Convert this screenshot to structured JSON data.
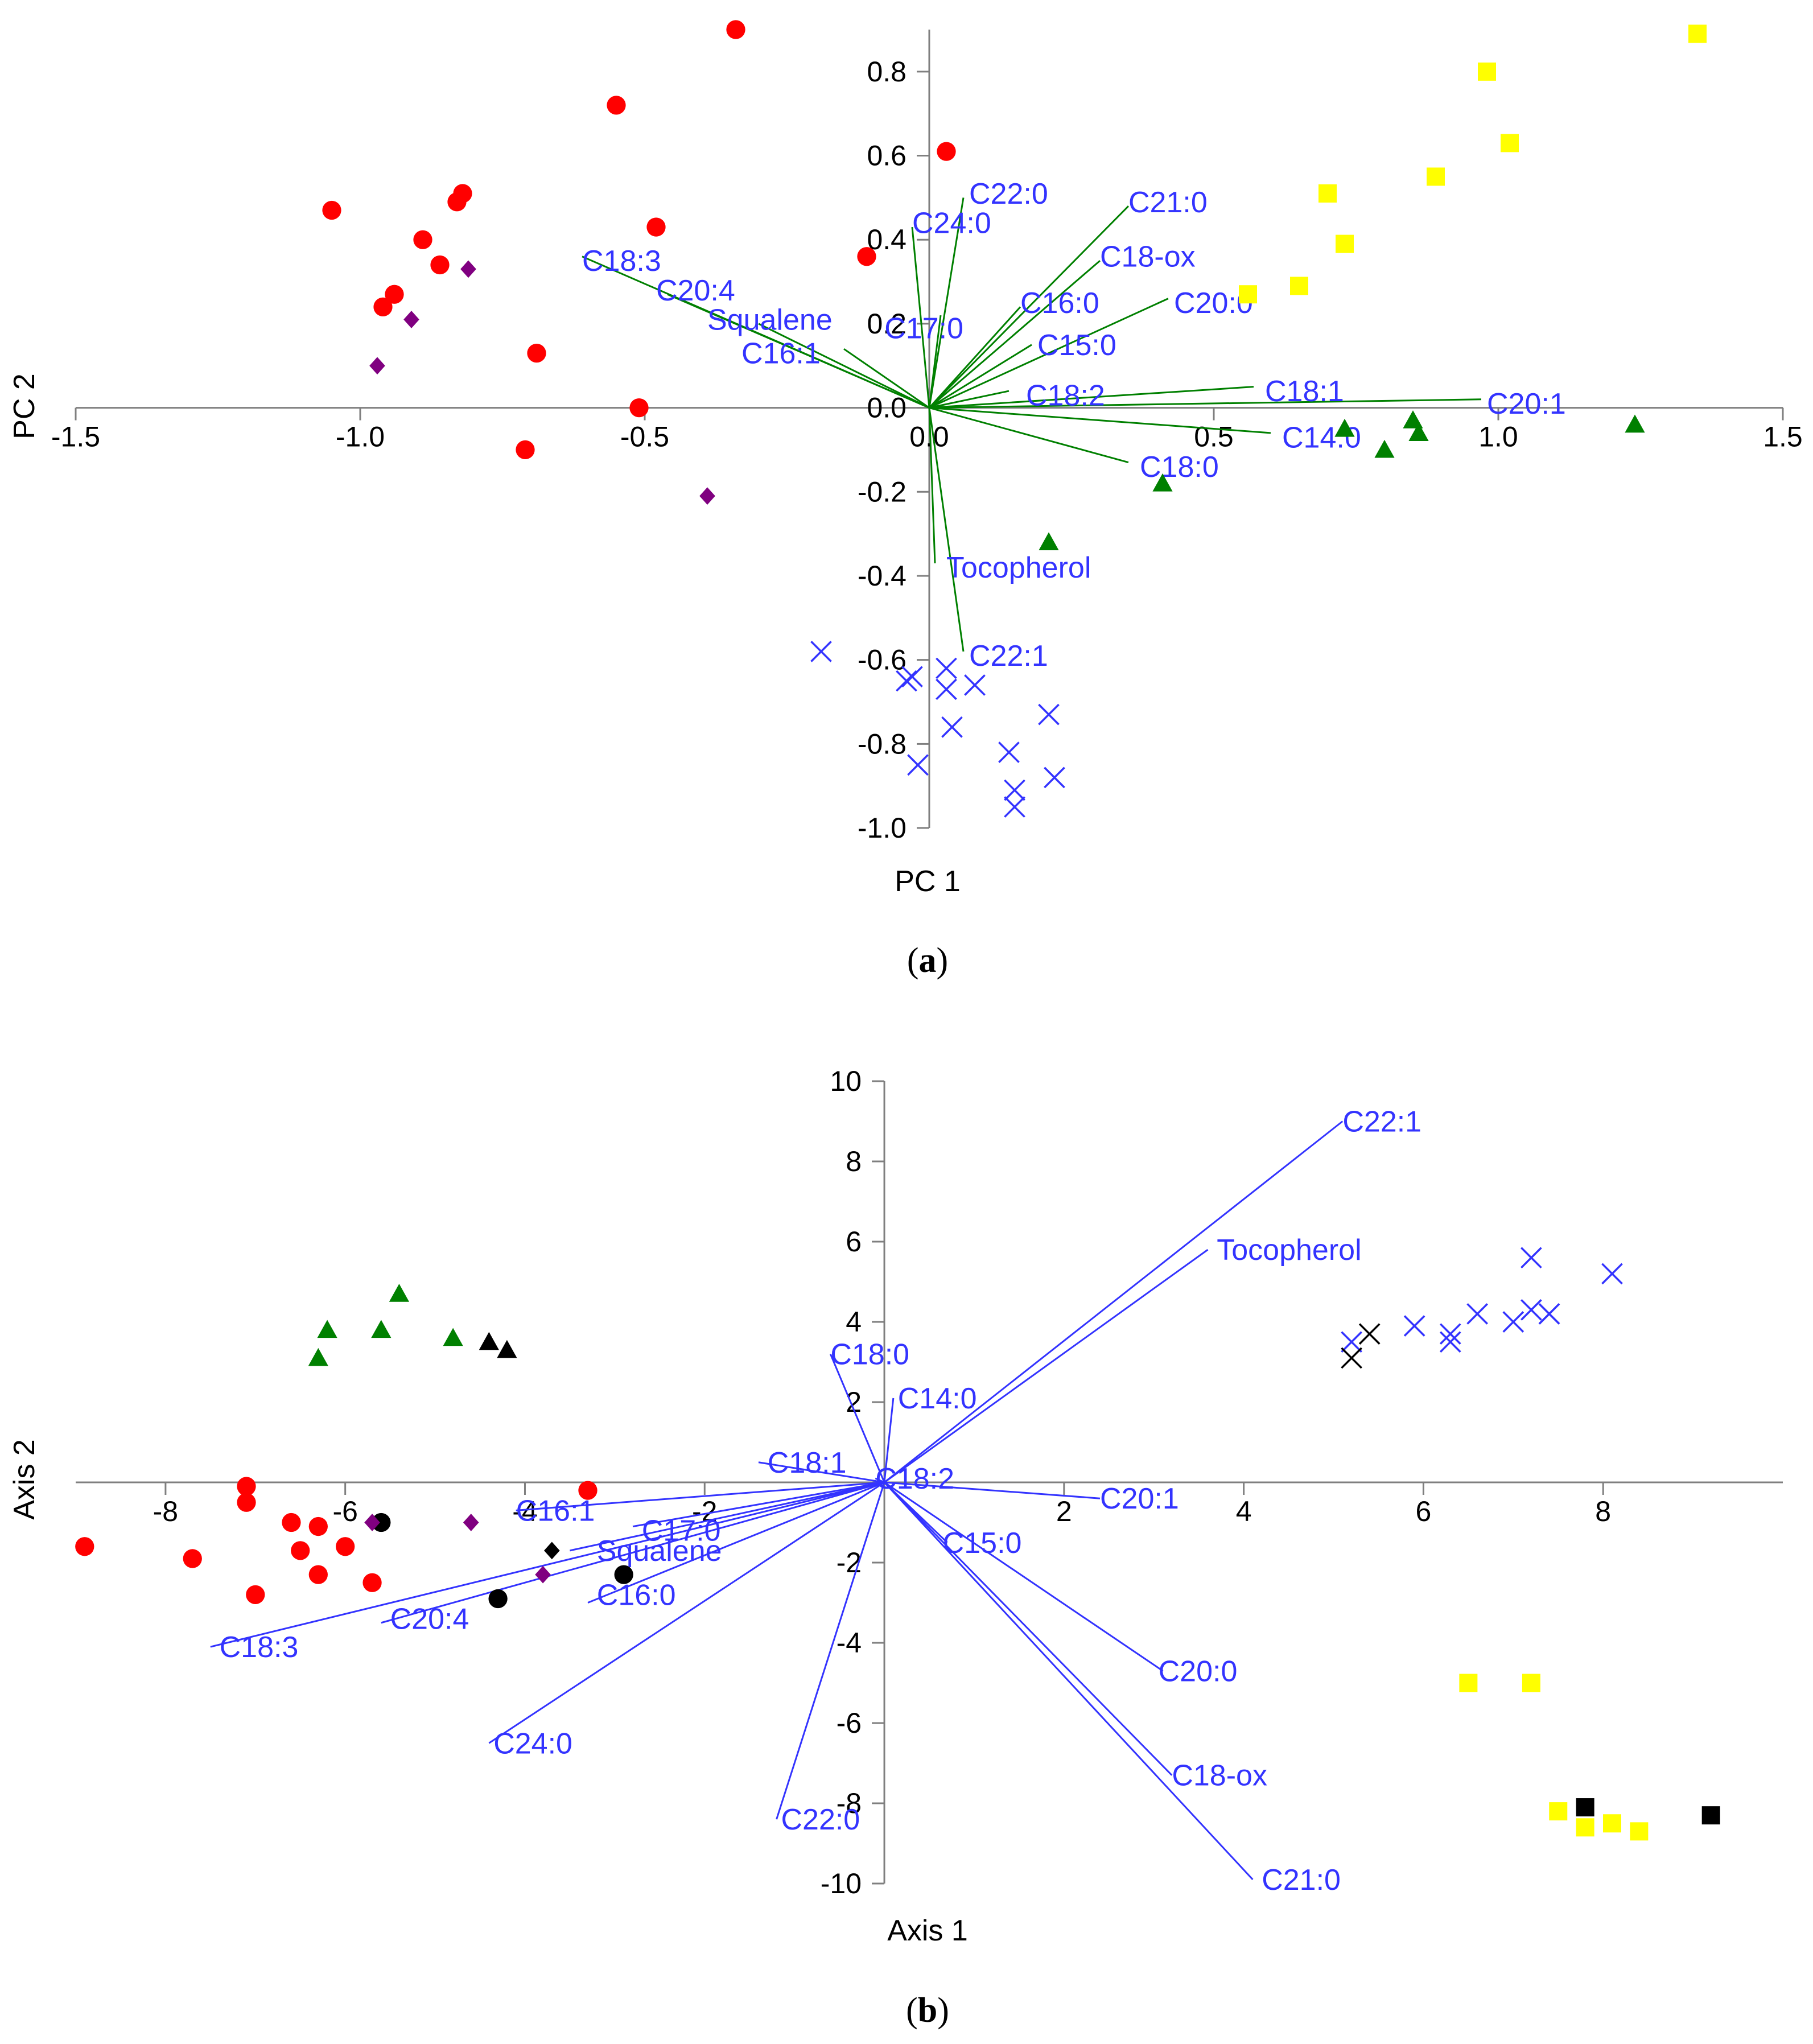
{
  "colors": {
    "red": "#ff0000",
    "yellow": "#ffff00",
    "green": "#008000",
    "purple": "#800080",
    "blue": "#3333ff",
    "black": "#000000",
    "loadingA": "#008000",
    "loadingB": "#3333ff"
  },
  "chart_data": [
    {
      "type": "scatter",
      "panel": "a",
      "panel_label": {
        "open": "(",
        "letter": "a",
        "close": ")"
      },
      "xlabel": "PC 1",
      "ylabel": "PC 2",
      "xlim": [
        -1.5,
        1.5
      ],
      "ylim": [
        -1.0,
        0.9
      ],
      "xticks": [
        -1.5,
        -1.0,
        -0.5,
        0.0,
        0.5,
        1.0,
        1.5
      ],
      "xtick_labels": [
        "-1.5",
        "-1.0",
        "-0.5",
        "0.0",
        "0.5",
        "1.0",
        "1.5"
      ],
      "yticks": [
        -1.0,
        -0.8,
        -0.6,
        -0.4,
        -0.2,
        0.0,
        0.2,
        0.4,
        0.6,
        0.8
      ],
      "ytick_labels": [
        "-1.0",
        "-0.8",
        "-0.6",
        "-0.4",
        "-0.2",
        "0.0",
        "0.2",
        "0.4",
        "0.6",
        "0.8"
      ],
      "series": [
        {
          "name": "red-circles",
          "marker": "circle",
          "color": "red",
          "points": [
            [
              -0.34,
              0.9
            ],
            [
              -0.55,
              0.72
            ],
            [
              -1.05,
              0.47
            ],
            [
              -0.82,
              0.51
            ],
            [
              -0.83,
              0.49
            ],
            [
              -0.89,
              0.4
            ],
            [
              -0.86,
              0.34
            ],
            [
              -0.94,
              0.27
            ],
            [
              -0.96,
              0.24
            ],
            [
              -0.69,
              0.13
            ],
            [
              -0.48,
              0.43
            ],
            [
              -0.71,
              -0.1
            ],
            [
              -0.51,
              0.0
            ],
            [
              0.03,
              0.61
            ],
            [
              -0.11,
              0.36
            ]
          ]
        },
        {
          "name": "purple-diamonds",
          "marker": "diamond",
          "color": "purple",
          "points": [
            [
              -0.81,
              0.33
            ],
            [
              -0.91,
              0.21
            ],
            [
              -0.97,
              0.1
            ],
            [
              -0.39,
              -0.21
            ]
          ]
        },
        {
          "name": "yellow-squares",
          "marker": "square",
          "color": "yellow",
          "points": [
            [
              1.35,
              0.89
            ],
            [
              0.98,
              0.8
            ],
            [
              1.02,
              0.63
            ],
            [
              0.89,
              0.55
            ],
            [
              0.7,
              0.51
            ],
            [
              0.73,
              0.39
            ],
            [
              0.65,
              0.29
            ],
            [
              0.56,
              0.27
            ]
          ]
        },
        {
          "name": "green-triangles",
          "marker": "triangle",
          "color": "green",
          "points": [
            [
              1.24,
              -0.04
            ],
            [
              0.85,
              -0.03
            ],
            [
              0.86,
              -0.06
            ],
            [
              0.73,
              -0.05
            ],
            [
              0.8,
              -0.1
            ],
            [
              0.41,
              -0.18
            ],
            [
              0.21,
              -0.32
            ]
          ]
        },
        {
          "name": "blue-crosses",
          "marker": "cross",
          "color": "blue",
          "points": [
            [
              -0.19,
              -0.58
            ],
            [
              -0.03,
              -0.64
            ],
            [
              -0.04,
              -0.65
            ],
            [
              0.03,
              -0.62
            ],
            [
              0.03,
              -0.67
            ],
            [
              0.08,
              -0.66
            ],
            [
              0.04,
              -0.76
            ],
            [
              -0.02,
              -0.85
            ],
            [
              0.14,
              -0.82
            ],
            [
              0.21,
              -0.73
            ],
            [
              0.15,
              -0.91
            ],
            [
              0.15,
              -0.95
            ],
            [
              0.22,
              -0.88
            ]
          ]
        }
      ],
      "vector_color": "loadingA",
      "label_color": "blue",
      "vectors": [
        {
          "name": "C22:0",
          "x": 0.06,
          "y": 0.5,
          "label_anchor": "start",
          "lx": 0.07,
          "ly": 0.51
        },
        {
          "name": "C24:0",
          "x": -0.03,
          "y": 0.43,
          "label_anchor": "start",
          "lx": -0.03,
          "ly": 0.44
        },
        {
          "name": "C21:0",
          "x": 0.35,
          "y": 0.48,
          "label_anchor": "start",
          "lx": 0.35,
          "ly": 0.49
        },
        {
          "name": "C18-ox",
          "x": 0.3,
          "y": 0.35,
          "label_anchor": "start",
          "lx": 0.3,
          "ly": 0.36
        },
        {
          "name": "C16:0",
          "x": 0.16,
          "y": 0.24,
          "label_anchor": "start",
          "lx": 0.16,
          "ly": 0.25
        },
        {
          "name": "C20:0",
          "x": 0.42,
          "y": 0.26,
          "label_anchor": "start",
          "lx": 0.43,
          "ly": 0.25
        },
        {
          "name": "C15:0",
          "x": 0.18,
          "y": 0.15,
          "label_anchor": "start",
          "lx": 0.19,
          "ly": 0.15
        },
        {
          "name": "C17:0",
          "x": 0.02,
          "y": 0.22,
          "label_anchor": "end",
          "lx": 0.06,
          "ly": 0.19
        },
        {
          "name": "C18:3",
          "x": -0.61,
          "y": 0.36,
          "label_anchor": "start",
          "lx": -0.61,
          "ly": 0.35
        },
        {
          "name": "C20:4",
          "x": -0.46,
          "y": 0.27,
          "label_anchor": "start",
          "lx": -0.48,
          "ly": 0.28
        },
        {
          "name": "Squalene",
          "x": -0.3,
          "y": 0.2,
          "label_anchor": "start",
          "lx": -0.39,
          "ly": 0.21
        },
        {
          "name": "C16:1",
          "x": -0.15,
          "y": 0.14,
          "label_anchor": "start",
          "lx": -0.33,
          "ly": 0.13
        },
        {
          "name": "C18:2",
          "x": 0.14,
          "y": 0.04,
          "label_anchor": "start",
          "lx": 0.17,
          "ly": 0.03
        },
        {
          "name": "C18:1",
          "x": 0.57,
          "y": 0.05,
          "label_anchor": "start",
          "lx": 0.59,
          "ly": 0.04
        },
        {
          "name": "C20:1",
          "x": 0.97,
          "y": 0.02,
          "label_anchor": "start",
          "lx": 0.98,
          "ly": 0.01
        },
        {
          "name": "C14:0",
          "x": 0.6,
          "y": -0.06,
          "label_anchor": "start",
          "lx": 0.62,
          "ly": -0.07
        },
        {
          "name": "C18:0",
          "x": 0.35,
          "y": -0.13,
          "label_anchor": "start",
          "lx": 0.37,
          "ly": -0.14
        },
        {
          "name": "Tocopherol",
          "x": 0.01,
          "y": -0.37,
          "label_anchor": "start",
          "lx": 0.03,
          "ly": -0.38
        },
        {
          "name": "C22:1",
          "x": 0.06,
          "y": -0.58,
          "label_anchor": "start",
          "lx": 0.07,
          "ly": -0.59
        }
      ]
    },
    {
      "type": "scatter",
      "panel": "b",
      "panel_label": {
        "open": "(",
        "letter": "b",
        "close": ")"
      },
      "xlabel": "Axis 1",
      "ylabel": "Axis 2",
      "xlim": [
        -9,
        10
      ],
      "ylim": [
        -10,
        10
      ],
      "xticks": [
        -8,
        -6,
        -4,
        -2,
        2,
        4,
        6,
        8
      ],
      "xtick_labels": [
        "-8",
        "-6",
        "-4",
        "-2",
        "2",
        "4",
        "6",
        "8"
      ],
      "yticks": [
        -10,
        -8,
        -6,
        -4,
        -2,
        2,
        4,
        6,
        8,
        10
      ],
      "ytick_labels": [
        "-10",
        "-8",
        "-6",
        "-4",
        "-2",
        "2",
        "4",
        "6",
        "8",
        "10"
      ],
      "series": [
        {
          "name": "red-circles",
          "marker": "circle",
          "color": "red",
          "points": [
            [
              -8.9,
              -1.6
            ],
            [
              -7.7,
              -1.9
            ],
            [
              -7.1,
              -0.1
            ],
            [
              -7.1,
              -0.5
            ],
            [
              -7.0,
              -2.8
            ],
            [
              -6.6,
              -1.0
            ],
            [
              -6.5,
              -1.7
            ],
            [
              -6.3,
              -1.1
            ],
            [
              -6.3,
              -2.3
            ],
            [
              -6.0,
              -1.6
            ],
            [
              -5.7,
              -2.5
            ],
            [
              -3.3,
              -0.2
            ]
          ]
        },
        {
          "name": "black-circles",
          "marker": "circle",
          "color": "black",
          "points": [
            [
              -5.6,
              -1.0
            ],
            [
              -4.3,
              -2.9
            ],
            [
              -2.9,
              -2.3
            ]
          ]
        },
        {
          "name": "purple-diamonds",
          "marker": "diamond",
          "color": "purple",
          "points": [
            [
              -5.7,
              -1.0
            ],
            [
              -4.6,
              -1.0
            ],
            [
              -3.8,
              -2.3
            ]
          ]
        },
        {
          "name": "black-diamonds",
          "marker": "diamond",
          "color": "black",
          "points": [
            [
              -3.7,
              -1.7
            ]
          ]
        },
        {
          "name": "green-triangles",
          "marker": "triangle",
          "color": "green",
          "points": [
            [
              -5.4,
              4.7
            ],
            [
              -6.2,
              3.8
            ],
            [
              -5.6,
              3.8
            ],
            [
              -6.3,
              3.1
            ],
            [
              -4.8,
              3.6
            ]
          ]
        },
        {
          "name": "black-triangles",
          "marker": "triangle",
          "color": "black",
          "points": [
            [
              -4.4,
              3.5
            ],
            [
              -4.2,
              3.3
            ]
          ]
        },
        {
          "name": "blue-crosses",
          "marker": "cross",
          "color": "blue",
          "points": [
            [
              8.1,
              5.2
            ],
            [
              7.2,
              5.6
            ],
            [
              7.2,
              4.3
            ],
            [
              7.4,
              4.2
            ],
            [
              7.4,
              4.2
            ],
            [
              6.6,
              4.2
            ],
            [
              7.0,
              4.0
            ],
            [
              5.9,
              3.9
            ],
            [
              6.3,
              3.7
            ],
            [
              6.3,
              3.5
            ],
            [
              5.2,
              3.5
            ]
          ]
        },
        {
          "name": "black-crosses",
          "marker": "cross",
          "color": "black",
          "points": [
            [
              5.4,
              3.7
            ],
            [
              5.2,
              3.1
            ]
          ]
        },
        {
          "name": "yellow-squares",
          "marker": "square",
          "color": "yellow",
          "points": [
            [
              6.5,
              -5.0
            ],
            [
              7.2,
              -5.0
            ],
            [
              7.5,
              -8.2
            ],
            [
              7.8,
              -8.6
            ],
            [
              8.1,
              -8.5
            ],
            [
              8.4,
              -8.7
            ]
          ]
        },
        {
          "name": "black-squares",
          "marker": "square",
          "color": "black",
          "points": [
            [
              7.8,
              -8.1
            ],
            [
              9.2,
              -8.3
            ]
          ]
        }
      ],
      "vector_color": "loadingB",
      "label_color": "blue",
      "vectors": [
        {
          "name": "C22:1",
          "x": 5.1,
          "y": 9.0,
          "label_anchor": "start",
          "lx": 5.1,
          "ly": 9.0
        },
        {
          "name": "Tocopherol",
          "x": 3.6,
          "y": 5.8,
          "label_anchor": "start",
          "lx": 3.7,
          "ly": 5.8
        },
        {
          "name": "C18:0",
          "x": -0.6,
          "y": 3.2,
          "label_anchor": "start",
          "lx": -0.6,
          "ly": 3.2
        },
        {
          "name": "C14:0",
          "x": 0.1,
          "y": 2.1,
          "label_anchor": "start",
          "lx": 0.15,
          "ly": 2.1
        },
        {
          "name": "C18:1",
          "x": -1.4,
          "y": 0.5,
          "label_anchor": "start",
          "lx": -1.3,
          "ly": 0.5
        },
        {
          "name": "C18:2",
          "x": -0.1,
          "y": 0.1,
          "label_anchor": "start",
          "lx": -0.1,
          "ly": 0.1
        },
        {
          "name": "C20:1",
          "x": 2.4,
          "y": -0.4,
          "label_anchor": "start",
          "lx": 2.4,
          "ly": -0.4
        },
        {
          "name": "C15:0",
          "x": 0.7,
          "y": -1.5,
          "label_anchor": "start",
          "lx": 0.65,
          "ly": -1.5
        },
        {
          "name": "C20:0",
          "x": 3.1,
          "y": -4.7,
          "label_anchor": "start",
          "lx": 3.05,
          "ly": -4.7
        },
        {
          "name": "C18-ox",
          "x": 3.2,
          "y": -7.3,
          "label_anchor": "start",
          "lx": 3.2,
          "ly": -7.3
        },
        {
          "name": "C21:0",
          "x": 4.1,
          "y": -9.9,
          "label_anchor": "start",
          "lx": 4.2,
          "ly": -9.9
        },
        {
          "name": "C22:0",
          "x": -1.2,
          "y": -8.4,
          "label_anchor": "start",
          "lx": -1.15,
          "ly": -8.4
        },
        {
          "name": "C24:0",
          "x": -4.4,
          "y": -6.5,
          "label_anchor": "start",
          "lx": -4.35,
          "ly": -6.5
        },
        {
          "name": "C16:0",
          "x": -3.3,
          "y": -3.0,
          "label_anchor": "start",
          "lx": -3.2,
          "ly": -2.8
        },
        {
          "name": "Squalene",
          "x": -3.5,
          "y": -1.7,
          "label_anchor": "start",
          "lx": -3.2,
          "ly": -1.7
        },
        {
          "name": "C17:0",
          "x": -2.8,
          "y": -1.1,
          "label_anchor": "start",
          "lx": -2.7,
          "ly": -1.2
        },
        {
          "name": "C16:1",
          "x": -4.1,
          "y": -0.7,
          "label_anchor": "start",
          "lx": -4.1,
          "ly": -0.7
        },
        {
          "name": "C20:4",
          "x": -5.6,
          "y": -3.5,
          "label_anchor": "start",
          "lx": -5.5,
          "ly": -3.4
        },
        {
          "name": "C18:3",
          "x": -7.5,
          "y": -4.1,
          "label_anchor": "start",
          "lx": -7.4,
          "ly": -4.1
        }
      ]
    }
  ]
}
